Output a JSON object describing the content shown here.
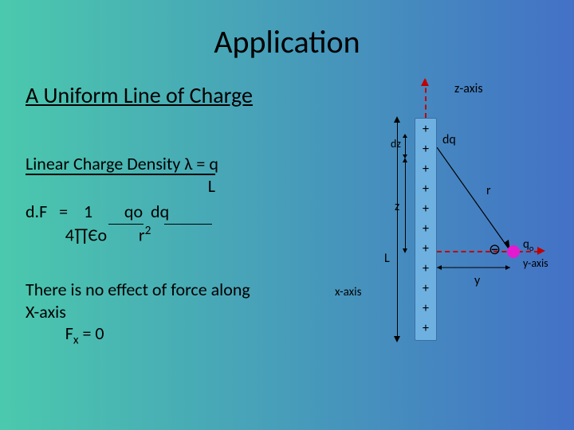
{
  "background": {
    "gradient_from": "#4bc9ad",
    "gradient_to": "#4371c6"
  },
  "title": "Application",
  "subtitle": "A Uniform Line of Charge",
  "text": {
    "lcd_line1": "Linear Charge Density λ   =    q",
    "lcd_line2_indent": "                                              L",
    "df_line1": "d.F   =    1        qo  dq",
    "df_line2": "          4∏Єo        r",
    "df_sup": "2",
    "noeffect_l1": "There is no effect of force along",
    "noeffect_l2": "X-axis",
    "fx_eq": "          F",
    "fx_sub": "x",
    "fx_tail": "  =  0"
  },
  "diagram": {
    "z_axis_label": "z-axis",
    "y_axis_label": "y-axis",
    "x_axis_label": "x-axis",
    "rod_color": "#6eb1e1",
    "rod_border": "#3a6ea5",
    "plus_count": 11,
    "dq_label": "dq",
    "dz_label": "dz",
    "z_label": "z",
    "L_label": "L",
    "r_label": "r",
    "y_label": "y",
    "qo_label_html": "q<sub>o</sub>",
    "qo_color": "#e21bd0",
    "qo_minus": "⊖",
    "dash_color": "#c00000",
    "arrow_color": "#c00000"
  }
}
